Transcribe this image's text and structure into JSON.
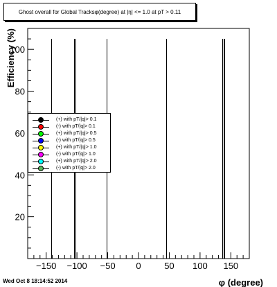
{
  "chart_data": {
    "type": "bar",
    "title": "Ghost overall for Global Tracksφ(degree) at |η| <= 1.0 at pT > 0.11",
    "xlabel": "φ (degree)",
    "ylabel": "Efficiency (%)",
    "xlim": [
      -180,
      180
    ],
    "ylim": [
      0,
      110
    ],
    "x_ticks": [
      -150,
      -100,
      -50,
      0,
      50,
      100,
      150
    ],
    "y_ticks": [
      20,
      40,
      60,
      80,
      100
    ],
    "grid": false,
    "legend_position": "middle-left",
    "spikes": [
      {
        "x": -142,
        "value": 105
      },
      {
        "x": -105,
        "value": 105
      },
      {
        "x": -102,
        "value": 105
      },
      {
        "x": -52,
        "value": 105
      },
      {
        "x": 45,
        "value": 105
      },
      {
        "x": 136,
        "value": 105
      },
      {
        "x": 138,
        "value": 105
      },
      {
        "x": 140,
        "value": 105
      }
    ],
    "series": [
      {
        "name": "(+) with pT/|q|> 0.1",
        "color": "#000000"
      },
      {
        "name": "(-) with pT/|q|> 0.1",
        "color": "#ff0000"
      },
      {
        "name": "(+) with pT/|q|> 0.5",
        "color": "#00ff00"
      },
      {
        "name": "(-) with pT/|q|> 0.5",
        "color": "#0000ff"
      },
      {
        "name": "(+) with pT/|q|> 1.0",
        "color": "#ffff00"
      },
      {
        "name": "(-) with pT/|q|> 1.0",
        "color": "#ff00ff"
      },
      {
        "name": "(+) with pT/|q|> 2.0",
        "color": "#00ffff"
      },
      {
        "name": "(-) with pT/|q|> 2.0",
        "color": "#5cb85c"
      }
    ]
  },
  "footer": {
    "timestamp": "Wed Oct  8 18:14:52 2014"
  }
}
